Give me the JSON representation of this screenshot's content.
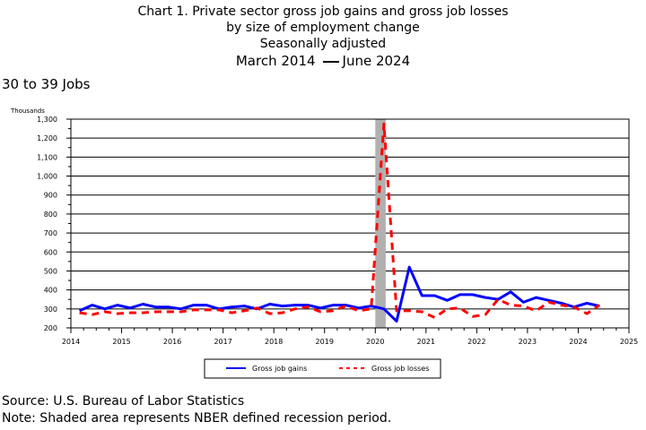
{
  "title": {
    "line1": "Chart 1. Private sector gross job gains and gross job losses",
    "line2": "by size of employment change",
    "line3": "Seasonally adjusted",
    "period_start": "March 2014",
    "period_end": "June 2024"
  },
  "subtitle": "30 to 39 Jobs",
  "footer": {
    "source": "Source: U.S. Bureau of Labor Statistics",
    "note": "Note: Shaded area represents NBER defined recession period."
  },
  "colors": {
    "gains": "#0000ff",
    "losses": "#ff0000",
    "recession": "#b0b0b0"
  },
  "chart_data": {
    "type": "line",
    "ylabel": "Thousands",
    "ylim": [
      200,
      1300
    ],
    "yticks": [
      200,
      300,
      400,
      500,
      600,
      700,
      800,
      900,
      1000,
      1100,
      1200,
      1300
    ],
    "ytick_labels": [
      "200",
      "300",
      "400",
      "500",
      "600",
      "700",
      "800",
      "900",
      "1,000",
      "1,100",
      "1,200",
      "1,300"
    ],
    "xlim": [
      2014,
      2025
    ],
    "xticks": [
      2014,
      2015,
      2016,
      2017,
      2018,
      2019,
      2020,
      2021,
      2022,
      2023,
      2024,
      2025
    ],
    "grid": true,
    "legend_position": "bottom",
    "recession": {
      "start": 2020.0,
      "end": 2020.17
    },
    "series": [
      {
        "name": "Gross job gains",
        "style": "solid",
        "x": [
          2014.17,
          2014.42,
          2014.67,
          2014.92,
          2015.17,
          2015.42,
          2015.67,
          2015.92,
          2016.17,
          2016.42,
          2016.67,
          2016.92,
          2017.17,
          2017.42,
          2017.67,
          2017.92,
          2018.17,
          2018.42,
          2018.67,
          2018.92,
          2019.17,
          2019.42,
          2019.67,
          2019.92,
          2020.17,
          2020.42,
          2020.67,
          2020.92,
          2021.17,
          2021.42,
          2021.67,
          2021.92,
          2022.17,
          2022.42,
          2022.67,
          2022.92,
          2023.17,
          2023.42,
          2023.67,
          2023.92,
          2024.17,
          2024.42
        ],
        "values": [
          290,
          320,
          300,
          320,
          305,
          325,
          310,
          310,
          300,
          320,
          320,
          300,
          310,
          315,
          300,
          325,
          315,
          320,
          320,
          305,
          320,
          320,
          305,
          315,
          300,
          235,
          520,
          370,
          370,
          345,
          375,
          375,
          360,
          350,
          390,
          335,
          360,
          345,
          330,
          310,
          330,
          315
        ]
      },
      {
        "name": "Gross job losses",
        "style": "dashed",
        "x": [
          2014.17,
          2014.42,
          2014.67,
          2014.92,
          2015.17,
          2015.42,
          2015.67,
          2015.92,
          2016.17,
          2016.42,
          2016.67,
          2016.92,
          2017.17,
          2017.42,
          2017.67,
          2017.92,
          2018.17,
          2018.42,
          2018.67,
          2018.92,
          2019.17,
          2019.42,
          2019.67,
          2019.92,
          2020.17,
          2020.42,
          2020.67,
          2020.92,
          2021.17,
          2021.42,
          2021.67,
          2021.92,
          2022.17,
          2022.42,
          2022.67,
          2022.92,
          2023.17,
          2023.42,
          2023.67,
          2023.92,
          2024.17,
          2024.42
        ],
        "values": [
          280,
          270,
          285,
          275,
          280,
          280,
          285,
          285,
          285,
          295,
          295,
          295,
          280,
          290,
          305,
          275,
          280,
          300,
          310,
          285,
          290,
          315,
          290,
          300,
          1275,
          290,
          290,
          285,
          255,
          300,
          305,
          260,
          270,
          350,
          320,
          315,
          290,
          335,
          320,
          310,
          275,
          320
        ]
      }
    ]
  }
}
